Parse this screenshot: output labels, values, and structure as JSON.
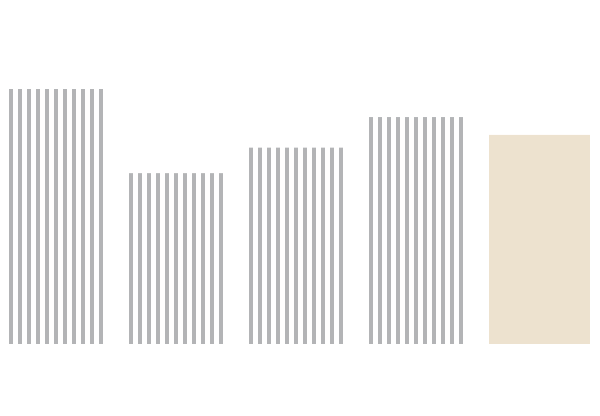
{
  "chart_data": {
    "type": "bar",
    "title": "",
    "xlabel": "",
    "ylabel": "",
    "categories": [
      "",
      "",
      "",
      "",
      ""
    ],
    "values": [
      1.0,
      0.67,
      0.77,
      0.89,
      0.82
    ],
    "ylim": [
      0,
      1.0
    ],
    "grid": false,
    "legend": "none",
    "colors": {
      "striped_bar": "#b3b4b6",
      "solid_bar": "#ede2cf",
      "background": "#ffffff"
    },
    "bar_styles": [
      "striped",
      "striped",
      "striped",
      "striped",
      "solid"
    ]
  }
}
